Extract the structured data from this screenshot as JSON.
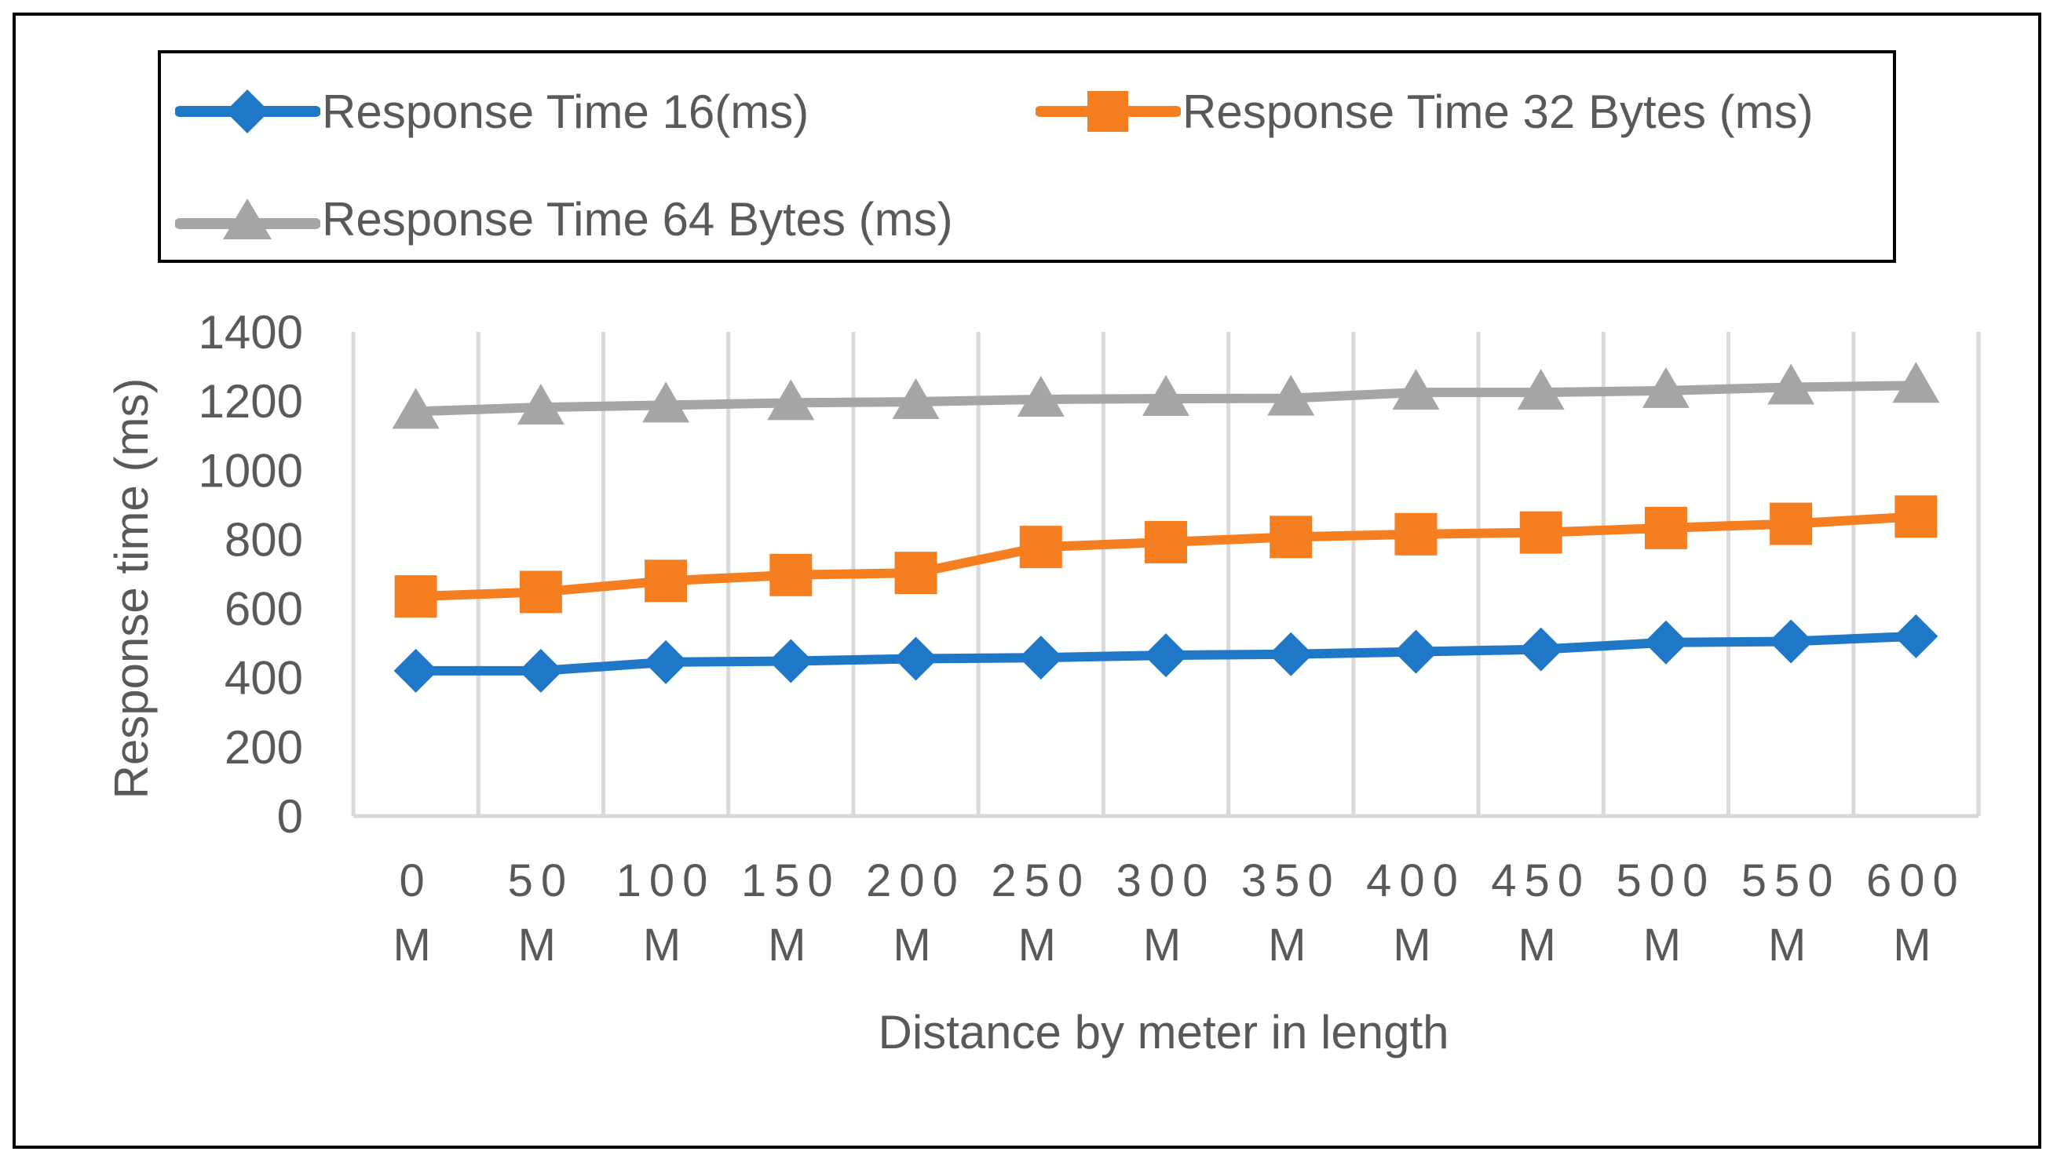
{
  "chart_data": {
    "type": "line",
    "title": "",
    "xlabel": "Distance by meter in length",
    "ylabel": "Response time (ms)",
    "ylim": [
      0,
      1400
    ],
    "ytick_step": 200,
    "yticks": [
      "0",
      "200",
      "400",
      "600",
      "800",
      "1000",
      "1200",
      "1400"
    ],
    "categories": [
      [
        "0",
        "M"
      ],
      [
        "50",
        "M"
      ],
      [
        "100",
        "M"
      ],
      [
        "150",
        "M"
      ],
      [
        "200",
        "M"
      ],
      [
        "250",
        "M"
      ],
      [
        "300",
        "M"
      ],
      [
        "350",
        "M"
      ],
      [
        "400",
        "M"
      ],
      [
        "450",
        "M"
      ],
      [
        "500",
        "M"
      ],
      [
        "550",
        "M"
      ],
      [
        "600",
        "M"
      ]
    ],
    "series": [
      {
        "name": "Response Time 16(ms)",
        "color": "#1F77C8",
        "marker": "diamond",
        "values": [
          420,
          420,
          445,
          448,
          455,
          458,
          465,
          468,
          475,
          482,
          502,
          505,
          520
        ]
      },
      {
        "name": "Response Time 32 Bytes (ms)",
        "color": "#F57F20",
        "marker": "square",
        "values": [
          635,
          648,
          680,
          697,
          703,
          778,
          792,
          807,
          815,
          820,
          833,
          845,
          866
        ]
      },
      {
        "name": "Response Time 64 Bytes (ms)",
        "color": "#A5A5A5",
        "marker": "triangle",
        "values": [
          1170,
          1182,
          1188,
          1195,
          1198,
          1205,
          1207,
          1208,
          1225,
          1225,
          1230,
          1240,
          1245
        ]
      }
    ],
    "grid": true,
    "legend_position": "top"
  }
}
